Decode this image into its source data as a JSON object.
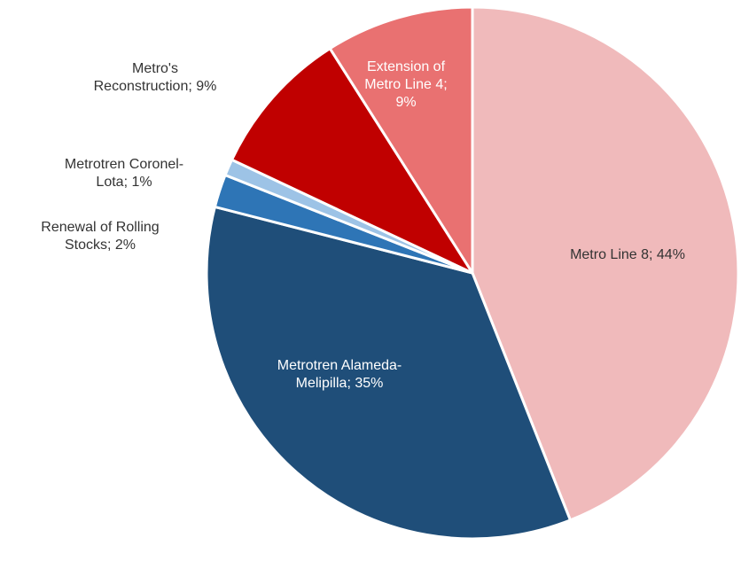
{
  "chart_data": {
    "type": "pie",
    "categories": [
      "Metro Line 8",
      "Metrotren Alameda-Melipilla",
      "Renewal of Rolling Stocks",
      "Metrotren Coronel-Lota",
      "Metro's Reconstruction",
      "Extension of Metro Line 4"
    ],
    "values": [
      44,
      35,
      2,
      1,
      9,
      9
    ],
    "value_labels": [
      "44%",
      "35%",
      "2%",
      "1%",
      "9%",
      "9%"
    ],
    "colors": [
      "#f0babb",
      "#1f4e79",
      "#2e75b6",
      "#9dc3e6",
      "#c00000",
      "#e97171"
    ]
  }
}
